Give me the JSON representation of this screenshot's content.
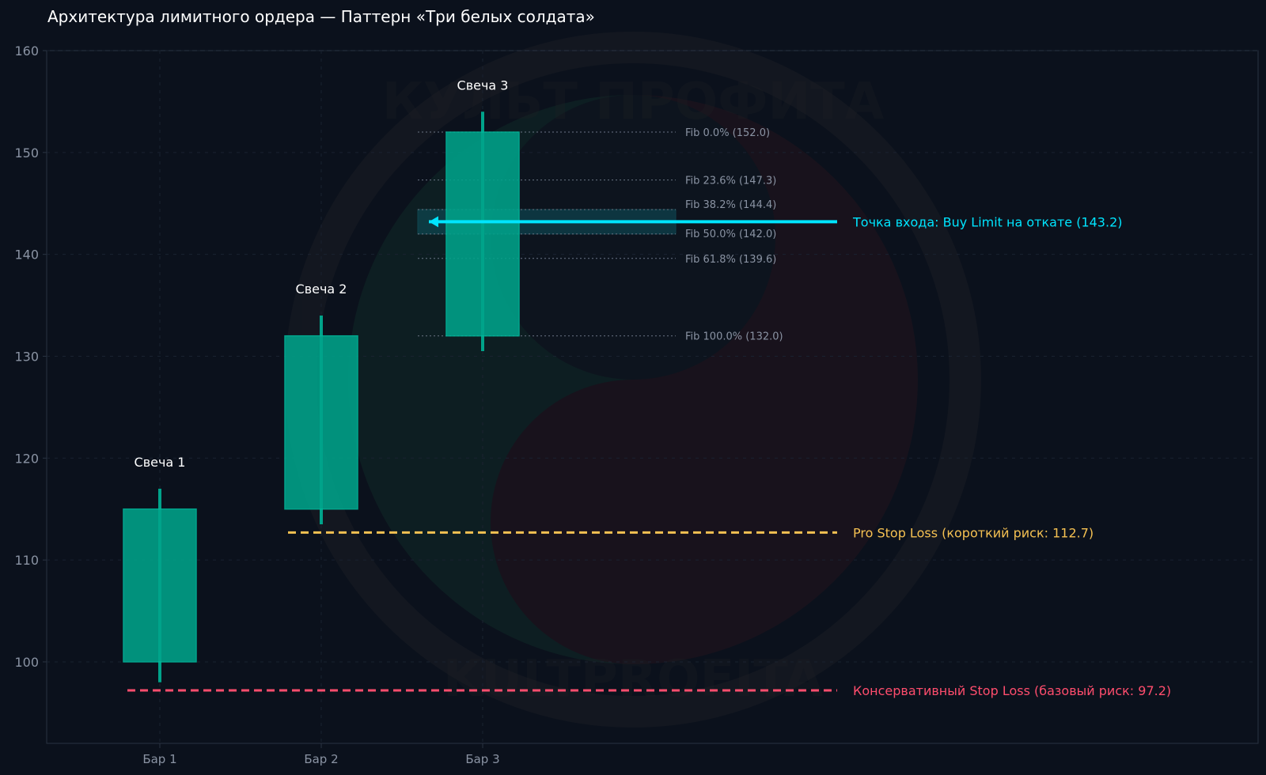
{
  "chart_data": {
    "type": "candlestick",
    "title": "Архитектура лимитного ордера — Паттерн «Три белых солдата»",
    "xlabel": "",
    "ylabel": "",
    "categories": [
      "Бар 1",
      "Бар 2",
      "Бар 3"
    ],
    "ylim": [
      92,
      160
    ],
    "yticks": [
      100,
      110,
      120,
      130,
      140,
      150,
      160
    ],
    "grid": true,
    "candles": [
      {
        "x": "Бар 1",
        "label": "Свеча 1",
        "open": 100,
        "close": 115,
        "low": 98,
        "high": 117
      },
      {
        "x": "Бар 2",
        "label": "Свеча 2",
        "open": 115,
        "close": 132,
        "low": 113.5,
        "high": 134
      },
      {
        "x": "Бар 3",
        "label": "Свеча 3",
        "open": 132,
        "close": 152,
        "low": 130.5,
        "high": 154
      }
    ],
    "fib_levels": [
      {
        "label": "Fib 0.0% (152.0)",
        "value": 152.0
      },
      {
        "label": "Fib 23.6% (147.3)",
        "value": 147.3
      },
      {
        "label": "Fib 38.2% (144.4)",
        "value": 144.4
      },
      {
        "label": "Fib 50.0% (142.0)",
        "value": 142.0
      },
      {
        "label": "Fib 61.8% (139.6)",
        "value": 139.6
      },
      {
        "label": "Fib 100.0% (132.0)",
        "value": 132.0
      }
    ],
    "entry_zone": [
      142.0,
      144.4
    ],
    "levels": [
      {
        "name": "entry",
        "label": "Точка входа: Buy Limit на откате (143.2)",
        "value": 143.2,
        "color": "#00e5ff",
        "style": "solid"
      },
      {
        "name": "pro-stop",
        "label": "Pro Stop Loss (короткий риск: 112.7)",
        "value": 112.7,
        "color": "#f5c152",
        "style": "dashed"
      },
      {
        "name": "conservative-stop",
        "label": "Консервативный Stop Loss (базовый риск: 97.2)",
        "value": 97.2,
        "color": "#ff4d6d",
        "style": "dashed"
      }
    ],
    "watermark": {
      "top_text": "КУЛЬТ ПРОФИТА",
      "bottom_text": "KULTPROFITA"
    },
    "colors": {
      "background": "#0b111c",
      "candle": "#00a38a",
      "grid": "#1a2230",
      "axis": "#2a3342",
      "fib": "#6b7585"
    }
  }
}
